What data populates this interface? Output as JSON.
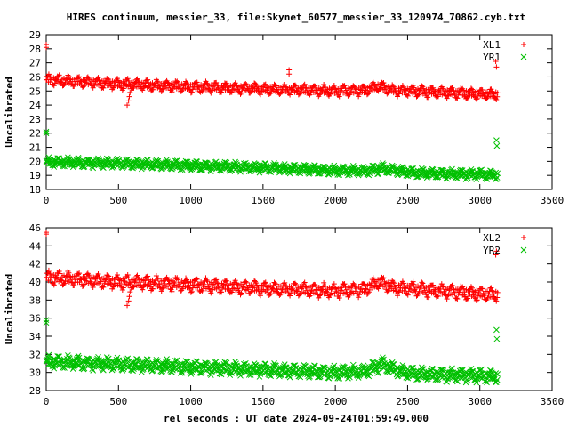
{
  "chart_data": {
    "type": "scatter",
    "title": "HIRES continuum, messier_33, file:Skynet_60577_messier_33_120974_70862.cyb.txt",
    "xlabel": "rel seconds : UT date 2024-09-24T01:59:49.000",
    "grid": false,
    "legend_position": "top-right",
    "panels": [
      {
        "ylabel": "Uncalibrated",
        "xlim": [
          0,
          3500
        ],
        "ylim": [
          18,
          29
        ],
        "x_ticks": [
          0,
          500,
          1000,
          1500,
          2000,
          2500,
          3000,
          3500
        ],
        "y_ticks": [
          18,
          19,
          20,
          21,
          22,
          23,
          24,
          25,
          26,
          27,
          28,
          29
        ],
        "series": [
          {
            "name": "XL1",
            "color": "#ff0000",
            "marker": "plus",
            "baseline": [
              [
                0,
                25.8
              ],
              [
                500,
                25.5
              ],
              [
                1000,
                25.3
              ],
              [
                1500,
                25.15
              ],
              [
                2000,
                25.0
              ],
              [
                2200,
                25.05
              ],
              [
                2300,
                25.35
              ],
              [
                2400,
                25.05
              ],
              [
                3000,
                24.8
              ],
              [
                3120,
                24.75
              ]
            ],
            "oscillation": 0.35,
            "outliers": [
              [
                0,
                28.1
              ],
              [
                0,
                28.3
              ],
              [
                560,
                24.0
              ],
              [
                570,
                24.3
              ],
              [
                575,
                24.6
              ],
              [
                580,
                24.9
              ],
              [
                1680,
                26.5
              ],
              [
                1680,
                26.2
              ],
              [
                3110,
                27.1
              ],
              [
                3115,
                26.7
              ]
            ]
          },
          {
            "name": "YR1",
            "color": "#00c000",
            "marker": "cross",
            "baseline": [
              [
                0,
                19.95
              ],
              [
                500,
                19.85
              ],
              [
                1000,
                19.7
              ],
              [
                1500,
                19.55
              ],
              [
                2000,
                19.35
              ],
              [
                2200,
                19.3
              ],
              [
                2320,
                19.5
              ],
              [
                2450,
                19.3
              ],
              [
                2600,
                19.15
              ],
              [
                3120,
                19.05
              ]
            ],
            "oscillation": 0.3,
            "outliers": [
              [
                0,
                22.0
              ],
              [
                0,
                22.1
              ],
              [
                3115,
                21.5
              ],
              [
                3118,
                21.1
              ]
            ]
          }
        ]
      },
      {
        "ylabel": "Uncalibrated",
        "xlim": [
          0,
          3500
        ],
        "ylim": [
          28,
          46
        ],
        "x_ticks": [
          0,
          500,
          1000,
          1500,
          2000,
          2500,
          3000,
          3500
        ],
        "y_ticks": [
          28,
          30,
          32,
          34,
          36,
          38,
          40,
          42,
          44,
          46
        ],
        "series": [
          {
            "name": "XL2",
            "color": "#ff0000",
            "marker": "plus",
            "baseline": [
              [
                0,
                40.5
              ],
              [
                500,
                40.0
              ],
              [
                1000,
                39.7
              ],
              [
                1500,
                39.3
              ],
              [
                2000,
                39.0
              ],
              [
                2200,
                39.2
              ],
              [
                2300,
                40.0
              ],
              [
                2400,
                39.4
              ],
              [
                3000,
                38.7
              ],
              [
                3120,
                38.6
              ]
            ],
            "oscillation": 0.7,
            "outliers": [
              [
                0,
                45.3
              ],
              [
                0,
                45.5
              ],
              [
                560,
                37.4
              ],
              [
                570,
                37.9
              ],
              [
                575,
                38.4
              ],
              [
                580,
                38.9
              ],
              [
                3110,
                43.0
              ],
              [
                3115,
                43.4
              ]
            ]
          },
          {
            "name": "YR2",
            "color": "#00c000",
            "marker": "cross",
            "baseline": [
              [
                0,
                31.2
              ],
              [
                500,
                30.9
              ],
              [
                1000,
                30.6
              ],
              [
                1500,
                30.3
              ],
              [
                2000,
                30.0
              ],
              [
                2200,
                30.1
              ],
              [
                2320,
                30.9
              ],
              [
                2450,
                30.1
              ],
              [
                2600,
                29.8
              ],
              [
                3120,
                29.6
              ]
            ],
            "oscillation": 0.65,
            "outliers": [
              [
                0,
                35.5
              ],
              [
                0,
                35.8
              ],
              [
                3115,
                34.7
              ],
              [
                3118,
                33.7
              ]
            ]
          }
        ]
      }
    ]
  }
}
